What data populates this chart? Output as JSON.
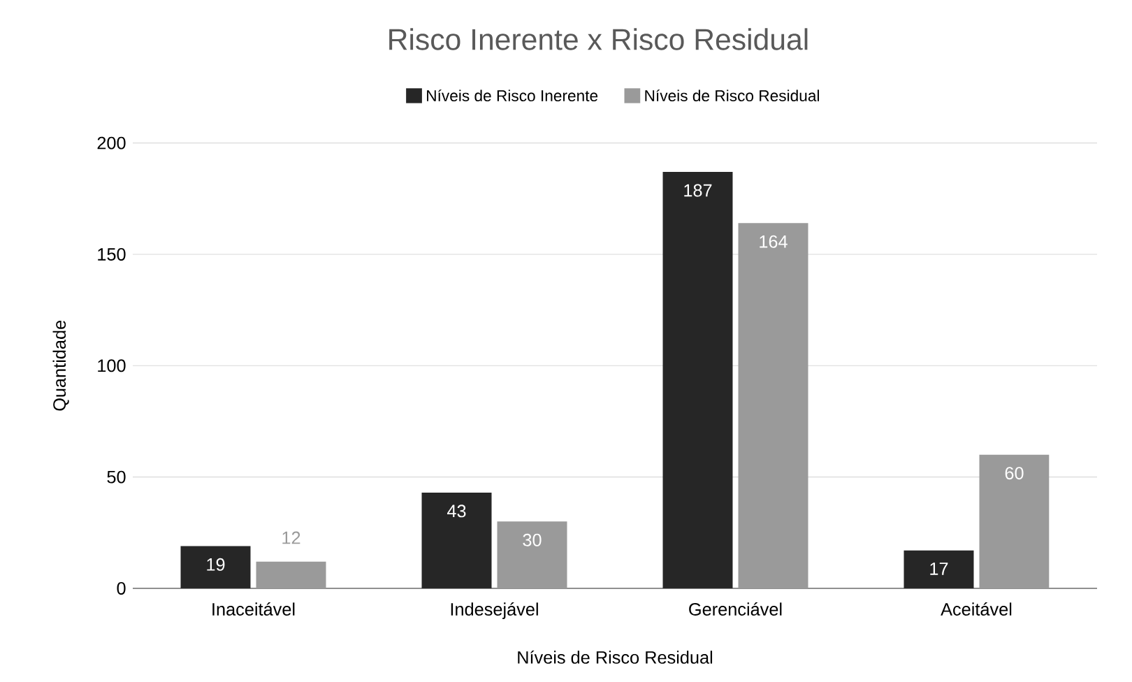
{
  "chart_data": {
    "type": "bar",
    "title": "Risco Inerente x Risco Residual",
    "xlabel": "Níveis de Risco Residual",
    "ylabel": "Quantidade",
    "categories": [
      "Inaceitável",
      "Indesejável",
      "Gerenciável",
      "Aceitável"
    ],
    "series": [
      {
        "name": "Níveis de Risco Inerente",
        "color": "#262626",
        "values": [
          19,
          43,
          187,
          17
        ]
      },
      {
        "name": "Níveis de Risco Residual",
        "color": "#9a9a9a",
        "values": [
          12,
          30,
          164,
          60
        ]
      }
    ],
    "ylim": [
      0,
      200
    ],
    "yticks": [
      0,
      50,
      100,
      150,
      200
    ],
    "grid": "y",
    "legend": "top",
    "data_labels": true
  }
}
